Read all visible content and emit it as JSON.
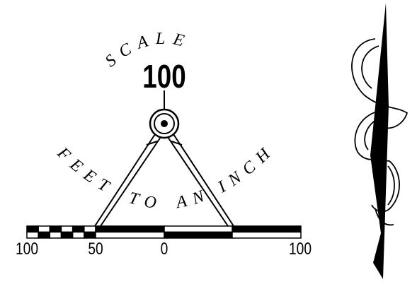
{
  "scale": {
    "heading": "SCALE",
    "number": "100",
    "words": [
      "FEET",
      "TO",
      "AN",
      "INCH"
    ],
    "labels": [
      "100",
      "50",
      "0",
      "100"
    ]
  }
}
